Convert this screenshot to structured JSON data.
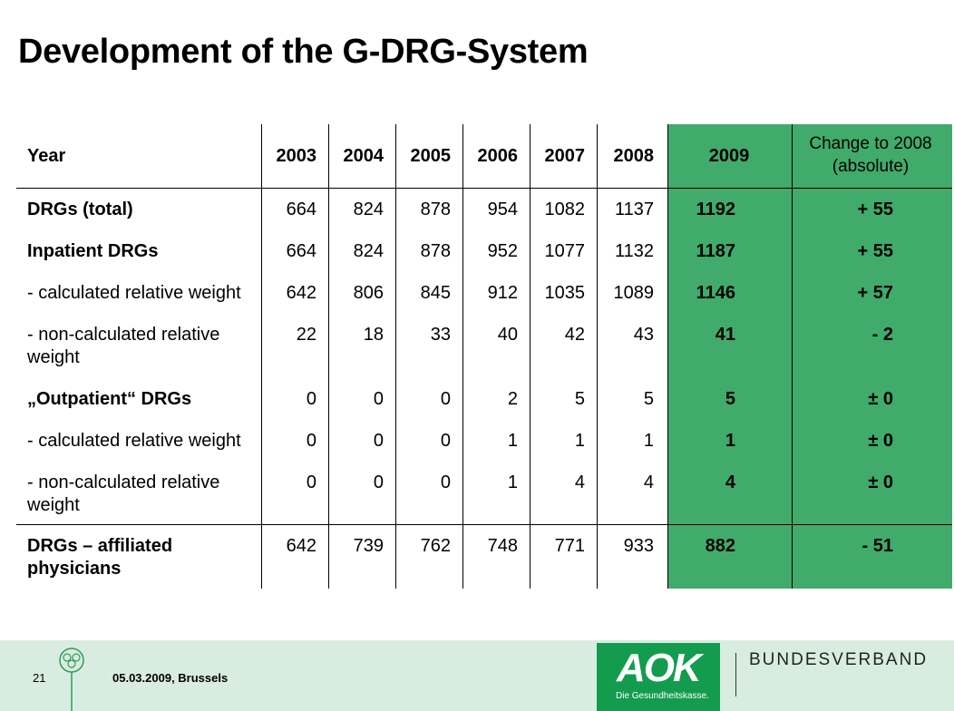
{
  "title": "Development of the G-DRG-System",
  "table": {
    "header": {
      "label": "Year",
      "years": [
        "2003",
        "2004",
        "2005",
        "2006",
        "2007",
        "2008",
        "2009"
      ],
      "change_line1": "Change to 2008",
      "change_line2": "(absolute)"
    },
    "rows": [
      {
        "label1": "DRGs (total)",
        "label2": "",
        "bold": true,
        "values": [
          "664",
          "824",
          "878",
          "954",
          "1082",
          "1137",
          "1192"
        ],
        "change": "+ 55"
      },
      {
        "label1": "Inpatient DRGs",
        "label2": "",
        "bold": true,
        "values": [
          "664",
          "824",
          "878",
          "952",
          "1077",
          "1132",
          "1187"
        ],
        "change": "+ 55"
      },
      {
        "label1": "- calculated relative weight",
        "label2": "",
        "bold": false,
        "values": [
          "642",
          "806",
          "845",
          "912",
          "1035",
          "1089",
          "1146"
        ],
        "change": "+ 57"
      },
      {
        "label1": "- non-calculated relative",
        "label2": "weight",
        "bold": false,
        "values": [
          "22",
          "18",
          "33",
          "40",
          "42",
          "43",
          "41"
        ],
        "change": "- 2"
      },
      {
        "label1": "„Outpatient“ DRGs",
        "label2": "",
        "bold": true,
        "values": [
          "0",
          "0",
          "0",
          "2",
          "5",
          "5",
          "5"
        ],
        "change": "± 0"
      },
      {
        "label1": "- calculated relative weight",
        "label2": "",
        "bold": false,
        "values": [
          "0",
          "0",
          "0",
          "1",
          "1",
          "1",
          "1"
        ],
        "change": "± 0"
      },
      {
        "label1": "- non-calculated relative",
        "label2": "weight",
        "bold": false,
        "values": [
          "0",
          "0",
          "0",
          "1",
          "4",
          "4",
          "4"
        ],
        "change": "± 0"
      },
      {
        "label1": "DRGs – affiliated",
        "label2": "physicians",
        "bold": true,
        "values": [
          "642",
          "739",
          "762",
          "748",
          "771",
          "933",
          "882"
        ],
        "change": "- 51"
      }
    ]
  },
  "footer": {
    "page_number": "21",
    "date_location": "05.03.2009, Brussels",
    "logo_text": "AOK",
    "logo_tagline": "Die Gesundheitskasse.",
    "org_name": "BUNDESVERBAND"
  },
  "colors": {
    "highlight_green": "#41ab6b",
    "footer_bg": "#d8ede0",
    "logo_green": "#139c4e"
  }
}
